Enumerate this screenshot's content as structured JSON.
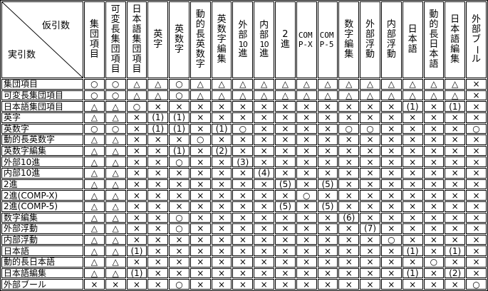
{
  "corner": {
    "top_right_label": "仮引数",
    "bottom_left_label": "実引数"
  },
  "colors": {
    "border": "#000000",
    "background": "#ffffff",
    "text": "#000000"
  },
  "symbols": {
    "compatible": "○",
    "conditional": "△",
    "incompatible": "×"
  },
  "columns": [
    {
      "label": "集団項目",
      "mode": "vertical",
      "segments": [
        "集",
        "団",
        "項",
        "目"
      ]
    },
    {
      "label": "可変長集団項目",
      "mode": "vertical",
      "segments": [
        "可",
        "変",
        "長",
        "集",
        "団",
        "項",
        "目"
      ]
    },
    {
      "label": "日本語集団項目",
      "mode": "vertical",
      "segments": [
        "日",
        "本",
        "語",
        "集",
        "団",
        "項",
        "目"
      ]
    },
    {
      "label": "英字",
      "mode": "vertical",
      "segments": [
        "英",
        "字"
      ]
    },
    {
      "label": "英数字",
      "mode": "vertical",
      "segments": [
        "英",
        "数",
        "字"
      ]
    },
    {
      "label": "動的長英数字",
      "mode": "vertical",
      "segments": [
        "動",
        "的",
        "長",
        "英",
        "数",
        "字"
      ]
    },
    {
      "label": "英数字編集",
      "mode": "vertical",
      "segments": [
        "英",
        "数",
        "字",
        "編",
        "集"
      ]
    },
    {
      "label": "外部10進",
      "mode": "vertical",
      "segments": [
        "外",
        "部",
        "10",
        "進"
      ]
    },
    {
      "label": "内部10進",
      "mode": "vertical",
      "segments": [
        "内",
        "部",
        "10",
        "進"
      ]
    },
    {
      "label": "2進",
      "mode": "vertical",
      "segments": [
        "2",
        "進"
      ]
    },
    {
      "label": "COMP-X",
      "mode": "lines",
      "segments": [
        "COM",
        "P-X"
      ]
    },
    {
      "label": "COMP-5",
      "mode": "lines",
      "segments": [
        "COM",
        "P-5"
      ]
    },
    {
      "label": "数字編集",
      "mode": "vertical",
      "segments": [
        "数",
        "字",
        "編",
        "集"
      ]
    },
    {
      "label": "外部浮動",
      "mode": "vertical",
      "segments": [
        "外",
        "部",
        "浮",
        "動"
      ]
    },
    {
      "label": "内部浮動",
      "mode": "vertical",
      "segments": [
        "内",
        "部",
        "浮",
        "動"
      ]
    },
    {
      "label": "日本語",
      "mode": "vertical",
      "segments": [
        "日",
        "本",
        "語"
      ]
    },
    {
      "label": "動的長日本語",
      "mode": "vertical",
      "segments": [
        "動",
        "的",
        "長",
        "日",
        "本",
        "語"
      ]
    },
    {
      "label": "日本語編集",
      "mode": "vertical",
      "segments": [
        "日",
        "本",
        "語",
        "編",
        "集"
      ]
    },
    {
      "label": "外部ブール",
      "mode": "vertical",
      "segments": [
        "外",
        "部",
        "ブ",
        "ー",
        "ル"
      ]
    }
  ],
  "rows": [
    {
      "label": "集団項目",
      "cells": [
        "○",
        "○",
        "△",
        "△",
        "○",
        "△",
        "△",
        "△",
        "△",
        "△",
        "△",
        "△",
        "△",
        "△",
        "△",
        "△",
        "△",
        "△",
        "×"
      ]
    },
    {
      "label": "可変長集団項目",
      "cells": [
        "○",
        "○",
        "△",
        "△",
        "○",
        "△",
        "△",
        "△",
        "△",
        "△",
        "△",
        "△",
        "△",
        "△",
        "△",
        "△",
        "△",
        "△",
        "×"
      ]
    },
    {
      "label": "日本語集団項目",
      "cells": [
        "△",
        "△",
        "○",
        "×",
        "×",
        "×",
        "×",
        "×",
        "×",
        "×",
        "×",
        "×",
        "×",
        "×",
        "×",
        "(1)",
        "×",
        "(1)",
        "×"
      ]
    },
    {
      "label": "英字",
      "cells": [
        "△",
        "△",
        "×",
        "(1)",
        "(1)",
        "×",
        "×",
        "×",
        "×",
        "×",
        "×",
        "×",
        "×",
        "×",
        "×",
        "×",
        "×",
        "×",
        "×"
      ]
    },
    {
      "label": "英数字",
      "cells": [
        "○",
        "○",
        "×",
        "(1)",
        "(1)",
        "×",
        "(1)",
        "○",
        "×",
        "×",
        "×",
        "×",
        "○",
        "○",
        "×",
        "×",
        "×",
        "×",
        "○"
      ]
    },
    {
      "label": "動的長英数字",
      "cells": [
        "△",
        "△",
        "×",
        "×",
        "×",
        "○",
        "×",
        "×",
        "×",
        "×",
        "×",
        "×",
        "×",
        "×",
        "×",
        "×",
        "×",
        "×",
        "×"
      ]
    },
    {
      "label": "英数字編集",
      "cells": [
        "△",
        "△",
        "×",
        "×",
        "(1)",
        "×",
        "(2)",
        "×",
        "×",
        "×",
        "×",
        "×",
        "×",
        "×",
        "×",
        "×",
        "×",
        "×",
        "×"
      ]
    },
    {
      "label": "外部10進",
      "cells": [
        "△",
        "△",
        "×",
        "×",
        "○",
        "×",
        "×",
        "(3)",
        "×",
        "×",
        "×",
        "×",
        "×",
        "×",
        "×",
        "×",
        "×",
        "×",
        "×"
      ]
    },
    {
      "label": "内部10進",
      "cells": [
        "△",
        "△",
        "×",
        "×",
        "×",
        "×",
        "×",
        "×",
        "(4)",
        "×",
        "×",
        "×",
        "×",
        "×",
        "×",
        "×",
        "×",
        "×",
        "×"
      ]
    },
    {
      "label": "2進",
      "cells": [
        "△",
        "△",
        "×",
        "×",
        "×",
        "×",
        "×",
        "×",
        "×",
        "(5)",
        "×",
        "(5)",
        "×",
        "×",
        "×",
        "×",
        "×",
        "×",
        "×"
      ]
    },
    {
      "label": "2進(COMP-X)",
      "cells": [
        "△",
        "△",
        "×",
        "×",
        "×",
        "×",
        "×",
        "×",
        "×",
        "×",
        "○",
        "×",
        "×",
        "×",
        "×",
        "×",
        "×",
        "×",
        "×"
      ]
    },
    {
      "label": "2進(COMP-5)",
      "cells": [
        "△",
        "△",
        "×",
        "×",
        "×",
        "×",
        "×",
        "×",
        "×",
        "(5)",
        "×",
        "(5)",
        "×",
        "×",
        "×",
        "×",
        "×",
        "×",
        "×"
      ]
    },
    {
      "label": "数字編集",
      "cells": [
        "△",
        "△",
        "×",
        "×",
        "○",
        "×",
        "×",
        "×",
        "×",
        "×",
        "×",
        "×",
        "(6)",
        "×",
        "×",
        "×",
        "×",
        "×",
        "×"
      ]
    },
    {
      "label": "外部浮動",
      "cells": [
        "△",
        "△",
        "×",
        "×",
        "○",
        "×",
        "×",
        "×",
        "×",
        "×",
        "×",
        "×",
        "×",
        "(7)",
        "×",
        "×",
        "×",
        "×",
        "×"
      ]
    },
    {
      "label": "内部浮動",
      "cells": [
        "△",
        "△",
        "×",
        "×",
        "×",
        "×",
        "×",
        "×",
        "×",
        "×",
        "×",
        "×",
        "×",
        "×",
        "○",
        "×",
        "×",
        "×",
        "×"
      ]
    },
    {
      "label": "日本語",
      "cells": [
        "△",
        "△",
        "(1)",
        "×",
        "×",
        "×",
        "×",
        "×",
        "×",
        "×",
        "×",
        "×",
        "×",
        "×",
        "×",
        "(1)",
        "×",
        "(1)",
        "×"
      ]
    },
    {
      "label": "動的長日本語",
      "cells": [
        "△",
        "△",
        "×",
        "×",
        "×",
        "×",
        "×",
        "×",
        "×",
        "×",
        "×",
        "×",
        "×",
        "×",
        "×",
        "×",
        "○",
        "×",
        "×"
      ]
    },
    {
      "label": "日本語編集",
      "cells": [
        "△",
        "△",
        "(1)",
        "×",
        "×",
        "×",
        "×",
        "×",
        "×",
        "×",
        "×",
        "×",
        "×",
        "×",
        "×",
        "(1)",
        "×",
        "(2)",
        "×"
      ]
    },
    {
      "label": "外部ブール",
      "cells": [
        "×",
        "×",
        "×",
        "×",
        "○",
        "×",
        "×",
        "×",
        "×",
        "×",
        "×",
        "×",
        "×",
        "×",
        "×",
        "×",
        "×",
        "×",
        "○"
      ]
    }
  ]
}
